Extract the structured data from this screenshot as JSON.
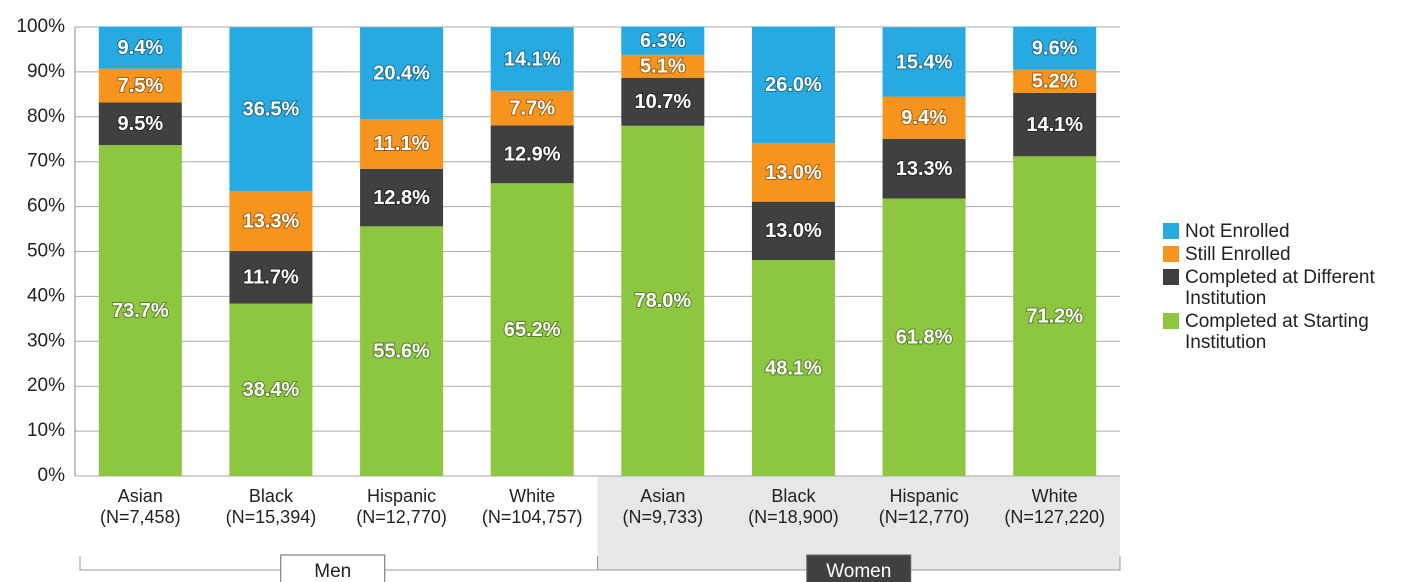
{
  "chart_data": {
    "type": "stacked_bar",
    "categories": [
      [
        "Asian",
        "(N=7,458)"
      ],
      [
        "Black",
        "(N=15,394)"
      ],
      [
        "Hispanic",
        "(N=12,770)"
      ],
      [
        "White",
        "(N=104,757)"
      ],
      [
        "Asian",
        "(N=9,733)"
      ],
      [
        "Black",
        "(N=18,900)"
      ],
      [
        "Hispanic",
        "(N=12,770)"
      ],
      [
        "White",
        "(N=127,220)"
      ]
    ],
    "groups": [
      {
        "name": "Men",
        "span": [
          0,
          3
        ]
      },
      {
        "name": "Women",
        "span": [
          4,
          7
        ]
      }
    ],
    "series": [
      {
        "name": "Completed at Starting Institution",
        "color": "#8dc63f",
        "values": [
          73.7,
          38.4,
          55.6,
          65.2,
          78.0,
          48.1,
          61.8,
          71.2
        ],
        "value_labels": [
          "73.7%",
          "38.4%",
          "55.6%",
          "65.2%",
          "78.0%",
          "48.1%",
          "61.8%",
          "71.2%"
        ]
      },
      {
        "name": "Completed at Different Institution",
        "color": "#404041",
        "values": [
          9.5,
          11.7,
          12.8,
          12.9,
          10.7,
          13.0,
          13.3,
          14.1
        ],
        "value_labels": [
          "9.5%",
          "11.7%",
          "12.8%",
          "12.9%",
          "10.7%",
          "13.0%",
          "13.3%",
          "14.1%"
        ]
      },
      {
        "name": "Still Enrolled",
        "color": "#f7941d",
        "values": [
          7.5,
          13.3,
          11.1,
          7.7,
          5.1,
          13.0,
          9.4,
          5.2
        ],
        "value_labels": [
          "7.5%",
          "13.3%",
          "11.1%",
          "7.7%",
          "5.1%",
          "13.0%",
          "9.4%",
          "5.2%"
        ]
      },
      {
        "name": "Not Enrolled",
        "color": "#27a9e1",
        "values": [
          9.4,
          36.5,
          20.4,
          14.1,
          6.3,
          26.0,
          15.4,
          9.6
        ],
        "value_labels": [
          "9.4%",
          "36.5%",
          "20.4%",
          "14.1%",
          "6.3%",
          "26.0%",
          "15.4%",
          "9.6%"
        ]
      }
    ],
    "ylim": [
      0,
      100
    ],
    "yticks": [
      {
        "value": 0,
        "label": "0%"
      },
      {
        "value": 10,
        "label": "10%"
      },
      {
        "value": 20,
        "label": "20%"
      },
      {
        "value": 30,
        "label": "30%"
      },
      {
        "value": 40,
        "label": "40%"
      },
      {
        "value": 50,
        "label": "50%"
      },
      {
        "value": 60,
        "label": "60%"
      },
      {
        "value": 70,
        "label": "70%"
      },
      {
        "value": 80,
        "label": "80%"
      },
      {
        "value": 90,
        "label": "90%"
      },
      {
        "value": 100,
        "label": "100%"
      }
    ],
    "grid": true,
    "legend": "right"
  }
}
